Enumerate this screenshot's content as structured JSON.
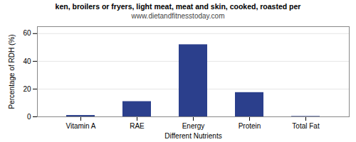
{
  "chart_data": {
    "type": "bar",
    "title": "ken, broilers or fryers, light meat, meat and skin, cooked, roasted per",
    "subtitle": "www.dietandfitnesstoday.com",
    "xlabel": "Different Nutrients",
    "ylabel": "Percentage of RDH (%)",
    "categories": [
      "Vitamin A",
      "RAE",
      "Energy",
      "Protein",
      "Total Fat"
    ],
    "values": [
      1.0,
      11.0,
      52.0,
      17.5,
      0.3
    ],
    "color": "#2b3f8c",
    "ylim": [
      0,
      65
    ],
    "yticks": [
      0,
      20,
      40,
      60
    ],
    "grid": true
  }
}
